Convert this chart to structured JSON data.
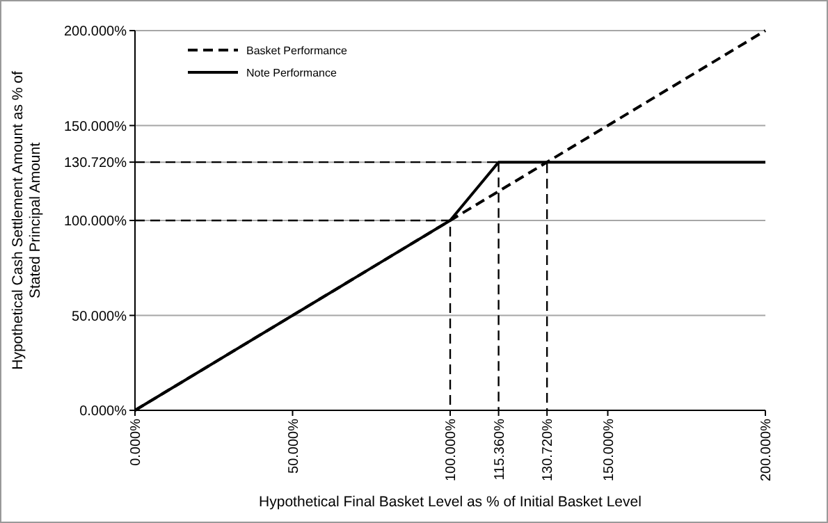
{
  "chart_data": {
    "type": "line",
    "xlabel": "Hypothetical Final Basket Level as % of Initial Basket Level",
    "ylabel": "Hypothetical Cash Settlement Amount as % of Stated Principal Amount",
    "xlim": [
      0,
      200
    ],
    "ylim": [
      0,
      200
    ],
    "xticks": [
      {
        "value": 0,
        "label": "0.000%"
      },
      {
        "value": 50,
        "label": "50.000%"
      },
      {
        "value": 100,
        "label": "100.000%"
      },
      {
        "value": 115.36,
        "label": "115.360%"
      },
      {
        "value": 130.72,
        "label": "130.720%"
      },
      {
        "value": 150,
        "label": "150.000%"
      },
      {
        "value": 200,
        "label": "200.000%"
      }
    ],
    "yticks": [
      {
        "value": 0,
        "label": "0.000%"
      },
      {
        "value": 50,
        "label": "50.000%"
      },
      {
        "value": 100,
        "label": "100.000%"
      },
      {
        "value": 130.72,
        "label": "130.720%"
      },
      {
        "value": 150,
        "label": "150.000%"
      },
      {
        "value": 200,
        "label": "200.000%"
      }
    ],
    "grid": "y",
    "legend": "top left",
    "marker": "none",
    "series": [
      {
        "name": "Basket Performance",
        "color": "#000000",
        "line_style": "dashed",
        "x": [
          0,
          200
        ],
        "values": [
          0,
          200
        ]
      },
      {
        "name": "Note Performance",
        "color": "#000000",
        "line_style": "solid",
        "x": [
          0,
          100,
          115.36,
          200
        ],
        "values": [
          0,
          100,
          130.72,
          130.72
        ]
      },
      {
        "color": "#000000",
        "line_style": "dashed",
        "x": [
          0,
          100,
          100
        ],
        "values": [
          100,
          100,
          0
        ]
      },
      {
        "color": "#000000",
        "line_style": "dashed",
        "x": [
          0,
          130.72,
          130.72
        ],
        "values": [
          130.72,
          130.72,
          0
        ]
      },
      {
        "color": "#000000",
        "line_style": "dashed",
        "x": [
          115.36,
          115.36
        ],
        "values": [
          130.72,
          0
        ]
      }
    ]
  }
}
